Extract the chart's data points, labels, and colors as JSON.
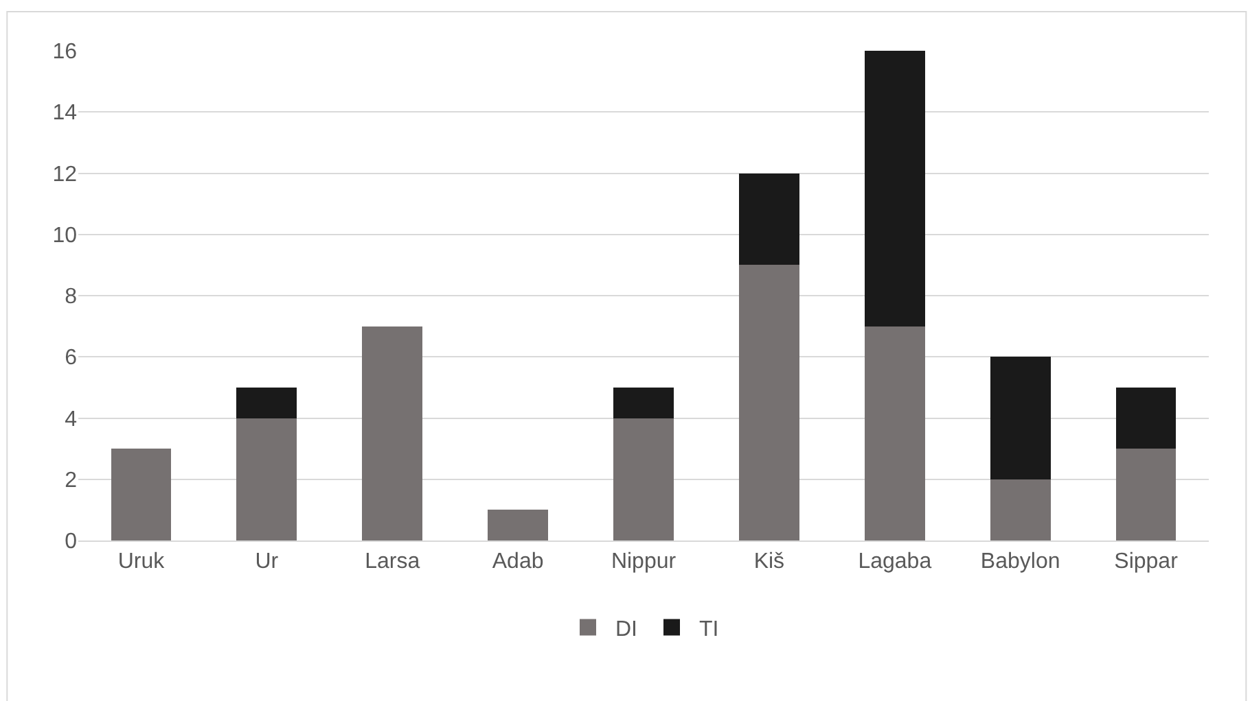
{
  "chart_data": {
    "type": "bar",
    "stacked": true,
    "categories": [
      "Uruk",
      "Ur",
      "Larsa",
      "Adab",
      "Nippur",
      "Kiš",
      "Lagaba",
      "Babylon",
      "Sippar"
    ],
    "series": [
      {
        "name": "DI",
        "color": "#767171",
        "values": [
          3,
          4,
          7,
          1,
          4,
          9,
          7,
          2,
          3
        ]
      },
      {
        "name": "TI",
        "color": "#1a1a1a",
        "values": [
          null,
          1,
          null,
          null,
          1,
          3,
          9,
          4,
          2
        ]
      }
    ],
    "ylim": [
      0,
      16
    ],
    "yticks": [
      0,
      2,
      4,
      6,
      8,
      10,
      12,
      14,
      16
    ],
    "grid": "y",
    "legend": "bottom"
  }
}
